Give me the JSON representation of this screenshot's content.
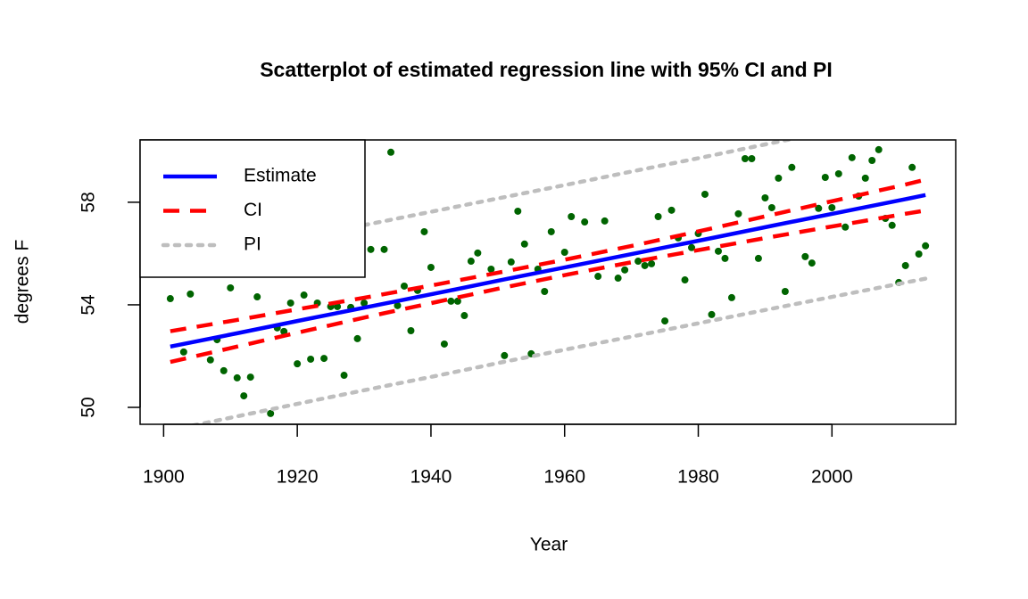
{
  "chart_data": {
    "type": "scatter",
    "title": "Scatterplot of estimated regression line with 95% CI and PI",
    "xlabel": "Year",
    "ylabel": "degrees F",
    "xlim": [
      1896.48,
      2018.52
    ],
    "ylim": [
      49.34,
      60.43
    ],
    "xticks": [
      1900,
      1920,
      1940,
      1960,
      1980,
      2000
    ],
    "yticks": [
      50,
      54,
      58
    ],
    "legend": "topleft",
    "points": {
      "color": "#006400",
      "x": [
        1901,
        1903,
        1904,
        1907,
        1908,
        1909,
        1910,
        1911,
        1912,
        1913,
        1914,
        1916,
        1917,
        1918,
        1919,
        1920,
        1921,
        1922,
        1923,
        1924,
        1925,
        1926,
        1927,
        1928,
        1929,
        1930,
        1931,
        1933,
        1934,
        1935,
        1936,
        1937,
        1938,
        1939,
        1940,
        1942,
        1943,
        1944,
        1945,
        1946,
        1947,
        1949,
        1951,
        1952,
        1953,
        1954,
        1955,
        1956,
        1957,
        1958,
        1960,
        1961,
        1963,
        1965,
        1966,
        1968,
        1969,
        1971,
        1972,
        1973,
        1974,
        1975,
        1976,
        1977,
        1978,
        1979,
        1980,
        1981,
        1982,
        1983,
        1984,
        1985,
        1986,
        1987,
        1988,
        1989,
        1990,
        1991,
        1992,
        1993,
        1994,
        1996,
        1997,
        1998,
        1999,
        2000,
        2001,
        2002,
        2003,
        2004,
        2005,
        2006,
        2007,
        2008,
        2009,
        2010,
        2011,
        2012,
        2013,
        2014
      ],
      "y": [
        54.24,
        52.16,
        54.42,
        51.85,
        52.64,
        51.43,
        54.66,
        51.15,
        50.45,
        51.18,
        54.31,
        49.76,
        53.1,
        52.96,
        54.07,
        51.7,
        54.38,
        51.88,
        54.07,
        51.91,
        53.93,
        53.93,
        51.25,
        53.9,
        52.68,
        54.07,
        56.16,
        56.16,
        59.95,
        53.97,
        54.73,
        52.99,
        54.56,
        56.85,
        55.46,
        52.47,
        54.14,
        54.14,
        53.58,
        55.7,
        56.02,
        55.39,
        52.02,
        55.67,
        57.65,
        56.37,
        52.09,
        55.39,
        54.52,
        56.85,
        56.05,
        57.44,
        57.23,
        55.11,
        57.27,
        55.04,
        55.36,
        55.7,
        55.53,
        55.6,
        57.44,
        53.37,
        57.69,
        56.61,
        54.97,
        56.23,
        56.78,
        58.31,
        53.62,
        56.09,
        55.81,
        54.28,
        57.55,
        59.7,
        59.7,
        55.81,
        58.17,
        57.79,
        58.94,
        54.52,
        59.36,
        55.88,
        55.63,
        57.76,
        58.97,
        57.79,
        59.11,
        57.03,
        59.74,
        58.24,
        58.94,
        59.63,
        60.05,
        57.37,
        57.1,
        54.87,
        55.53,
        59.36,
        55.98,
        56.3
      ]
    },
    "lines": [
      {
        "name": "Estimate",
        "color": "#0000ff",
        "style": "solid",
        "x": [
          1901,
          1911,
          1921,
          1931,
          1941,
          1951,
          1961,
          1971,
          1981,
          1991,
          2001,
          2011,
          2014
        ],
        "values": [
          52.37,
          52.89,
          53.42,
          53.94,
          54.46,
          54.99,
          55.51,
          56.03,
          56.55,
          57.08,
          57.6,
          58.12,
          58.28
        ]
      },
      {
        "name": "CI",
        "color": "#ff0000",
        "style": "dashed",
        "x": [
          1901,
          1911,
          1921,
          1931,
          1941,
          1951,
          1961,
          1971,
          1981,
          1991,
          2001,
          2011,
          2014
        ],
        "upper": [
          52.97,
          53.41,
          53.87,
          54.32,
          54.8,
          55.3,
          55.81,
          56.35,
          56.92,
          57.51,
          58.1,
          58.69,
          58.88
        ],
        "lower": [
          51.77,
          52.37,
          52.97,
          53.56,
          54.12,
          54.68,
          55.21,
          55.71,
          56.18,
          56.65,
          57.1,
          57.55,
          57.68
        ]
      },
      {
        "name": "PI",
        "color": "#bebebe",
        "style": "dotted",
        "x": [
          1901,
          1911,
          1921,
          1931,
          1941,
          1951,
          1961,
          1971,
          1981,
          1991,
          2001,
          2011,
          2014
        ],
        "upper": [
          55.63,
          56.13,
          56.65,
          57.16,
          57.68,
          58.2,
          58.72,
          59.25,
          59.77,
          60.31,
          60.84,
          61.37,
          61.54
        ],
        "lower": [
          49.11,
          49.65,
          50.19,
          50.72,
          51.24,
          51.78,
          52.3,
          52.81,
          53.33,
          53.85,
          54.36,
          54.87,
          55.02
        ]
      }
    ]
  }
}
